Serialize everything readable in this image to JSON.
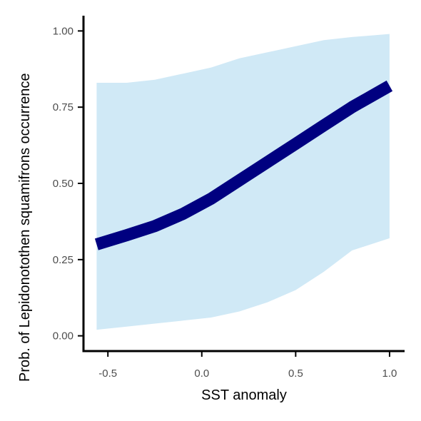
{
  "chart_data": {
    "type": "line",
    "title": "",
    "xlabel": "SST anomaly",
    "ylabel": "Prob. of  Lepidonotothen squamifrons  occurrence",
    "xlim": [
      -0.63,
      1.08
    ],
    "ylim": [
      -0.05,
      1.05
    ],
    "x_ticks": [
      -0.5,
      0.0,
      0.5,
      1.0
    ],
    "x_tick_labels": [
      "-0.5",
      "0.0",
      "0.5",
      "1.0"
    ],
    "y_ticks": [
      0.0,
      0.25,
      0.5,
      0.75,
      1.0
    ],
    "y_tick_labels": [
      "0.00",
      "0.25",
      "0.50",
      "0.75",
      "1.00"
    ],
    "grid": false,
    "legend": "none",
    "series": [
      {
        "x": [
          -0.56,
          -0.4,
          -0.25,
          -0.1,
          0.05,
          0.2,
          0.35,
          0.5,
          0.65,
          0.8,
          1.0
        ],
        "fit": [
          0.3,
          0.33,
          0.36,
          0.4,
          0.45,
          0.51,
          0.57,
          0.63,
          0.69,
          0.75,
          0.82
        ],
        "lower": [
          0.02,
          0.03,
          0.04,
          0.05,
          0.06,
          0.08,
          0.11,
          0.15,
          0.21,
          0.28,
          0.32
        ],
        "upper": [
          0.83,
          0.83,
          0.84,
          0.86,
          0.88,
          0.91,
          0.93,
          0.95,
          0.97,
          0.98,
          0.99
        ]
      }
    ],
    "colors": {
      "line": "#000080",
      "ribbon": "#d0e9f6",
      "axis": "#000000",
      "tick_text": "#4d4d4d"
    }
  }
}
